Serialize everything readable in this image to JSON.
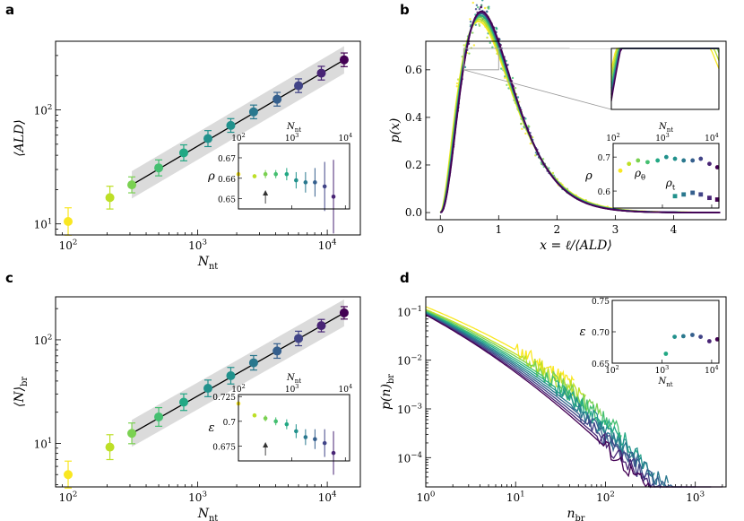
{
  "palette": [
    "#f9e721",
    "#bddf26",
    "#7ad151",
    "#44bf70",
    "#22a884",
    "#21918c",
    "#2a788e",
    "#355f8d",
    "#414487",
    "#482475",
    "#440154"
  ],
  "chart_data": [
    {
      "panel": "a",
      "type": "scatter",
      "xscale": "log",
      "yscale": "log",
      "xlim": [
        80,
        18000
      ],
      "ylim": [
        8,
        400
      ],
      "xlabel": "N",
      "xlabel_sub": "nt",
      "ylabel": "⟨ALD⟩",
      "xticks": [
        {
          "v": 100,
          "b": "10",
          "e": "2"
        },
        {
          "v": 1000,
          "b": "10",
          "e": "3"
        },
        {
          "v": 10000,
          "b": "10",
          "e": "4"
        }
      ],
      "yticks": [
        {
          "v": 10,
          "b": "10",
          "e": "1"
        },
        {
          "v": 100,
          "b": "10",
          "e": "2"
        }
      ],
      "x": [
        100,
        210,
        310,
        500,
        780,
        1200,
        1800,
        2700,
        4100,
        6000,
        9000,
        13500
      ],
      "y": [
        10.5,
        17,
        22,
        31,
        42,
        56,
        73,
        96,
        124,
        163,
        210,
        275
      ],
      "yerr": [
        0.12,
        0.1,
        0.07,
        0.07,
        0.07,
        0.07,
        0.06,
        0.06,
        0.06,
        0.06,
        0.06,
        0.06
      ],
      "fit": {
        "x": [
          310,
          13500
        ],
        "y": [
          22,
          275
        ],
        "band": 0.12
      },
      "inset": {
        "xlabel": "N",
        "xlabel_sub": "nt",
        "ylabel": "ρ",
        "xlim": [
          100,
          12000
        ],
        "ylim": [
          0.645,
          0.677
        ],
        "xticks": [
          {
            "v": 100,
            "b": "10",
            "e": "2"
          },
          {
            "v": 1000,
            "b": "10",
            "e": "3"
          },
          {
            "v": 10000,
            "b": "10",
            "e": "4"
          }
        ],
        "yticks": [
          0.65,
          0.66,
          0.67
        ],
        "x": [
          100,
          200,
          320,
          500,
          800,
          1200,
          1800,
          2700,
          4100,
          6000
        ],
        "y": [
          0.662,
          0.661,
          0.662,
          0.662,
          0.662,
          0.659,
          0.658,
          0.658,
          0.656,
          0.651
        ],
        "yerr": [
          0.001,
          0.001,
          0.002,
          0.002,
          0.003,
          0.004,
          0.005,
          0.007,
          0.012,
          0.018
        ],
        "arrow_x": 320
      }
    },
    {
      "panel": "b",
      "type": "line",
      "xlim": [
        -0.25,
        4.9
      ],
      "ylim": [
        -0.03,
        0.72
      ],
      "xlabel": "x = ℓ/⟨ALD⟩",
      "ylabel": "p(x)",
      "xticks": [
        0,
        1,
        2,
        3,
        4
      ],
      "yticks": [
        0.0,
        0.2,
        0.4,
        0.6
      ],
      "curve_model": "gamma",
      "shape_k": [
        2.9,
        3.0,
        3.1,
        3.2,
        3.2,
        3.3,
        3.3,
        3.3,
        3.35,
        3.35,
        3.4
      ],
      "inset_top": {
        "xlim": [
          0.4,
          1.0
        ],
        "ylim": [
          0.6,
          0.69
        ]
      },
      "inset": {
        "xlabel": "N",
        "xlabel_sub": "nt",
        "ylabel": "ρ",
        "xlim": [
          100,
          14000
        ],
        "ylim": [
          0.55,
          0.74
        ],
        "xticks": [
          {
            "v": 100,
            "b": "10",
            "e": "2"
          },
          {
            "v": 1000,
            "b": "10",
            "e": "3"
          },
          {
            "v": 10000,
            "b": "10",
            "e": "4"
          }
        ],
        "yticks": [
          0.6,
          0.7
        ],
        "rho_theta_label": "ρ",
        "rho_theta_sub": "θ",
        "rho_t_label": "ρ",
        "rho_t_sub": "t",
        "rho_theta": {
          "x": [
            140,
            210,
            320,
            500,
            800,
            1200,
            1800,
            2700,
            4100,
            6000,
            9000,
            13000
          ],
          "y": [
            0.66,
            0.68,
            0.69,
            0.685,
            0.69,
            0.7,
            0.695,
            0.69,
            0.69,
            0.695,
            0.68,
            0.67
          ]
        },
        "rho_t": {
          "x": [
            1800,
            2700,
            4100,
            6000,
            9000,
            13000
          ],
          "y": [
            0.585,
            0.59,
            0.595,
            0.59,
            0.58,
            0.575
          ]
        }
      }
    },
    {
      "panel": "c",
      "type": "scatter",
      "xscale": "log",
      "yscale": "log",
      "xlim": [
        80,
        18000
      ],
      "ylim": [
        3.8,
        260
      ],
      "xlabel": "N",
      "xlabel_sub": "nt",
      "ylabel": "⟨N⟩",
      "ylabel_sub": "br",
      "xticks": [
        {
          "v": 100,
          "b": "10",
          "e": "2"
        },
        {
          "v": 1000,
          "b": "10",
          "e": "3"
        },
        {
          "v": 10000,
          "b": "10",
          "e": "4"
        }
      ],
      "yticks": [
        {
          "v": 10,
          "b": "10",
          "e": "1"
        },
        {
          "v": 100,
          "b": "10",
          "e": "2"
        }
      ],
      "x": [
        100,
        210,
        310,
        500,
        780,
        1200,
        1800,
        2700,
        4100,
        6000,
        9000,
        13500
      ],
      "y": [
        5,
        9.2,
        12.5,
        18,
        25,
        34,
        45,
        60,
        78,
        103,
        137,
        182
      ],
      "yerr": [
        0.13,
        0.12,
        0.1,
        0.09,
        0.08,
        0.08,
        0.08,
        0.07,
        0.07,
        0.07,
        0.06,
        0.06
      ],
      "fit": {
        "x": [
          310,
          13500
        ],
        "y": [
          12.5,
          182
        ],
        "band": 0.13
      },
      "inset": {
        "xlabel": "N",
        "xlabel_sub": "nt",
        "ylabel": "ε",
        "xlim": [
          100,
          12000
        ],
        "ylim": [
          0.66,
          0.727
        ],
        "xticks": [
          {
            "v": 100,
            "b": "10",
            "e": "2"
          },
          {
            "v": 1000,
            "b": "10",
            "e": "3"
          },
          {
            "v": 10000,
            "b": "10",
            "e": "4"
          }
        ],
        "yticks": [
          0.675,
          0.7,
          0.725
        ],
        "x": [
          100,
          200,
          320,
          500,
          800,
          1200,
          1800,
          2700,
          4100,
          6000
        ],
        "y": [
          0.718,
          0.706,
          0.703,
          0.7,
          0.697,
          0.69,
          0.684,
          0.682,
          0.678,
          0.668
        ],
        "yerr": [
          0.002,
          0.002,
          0.003,
          0.004,
          0.005,
          0.007,
          0.008,
          0.01,
          0.014,
          0.022
        ],
        "arrow_x": 320
      }
    },
    {
      "panel": "d",
      "type": "line",
      "xscale": "log",
      "yscale": "log",
      "xlim": [
        1,
        2200
      ],
      "ylim": [
        2.5e-05,
        0.2
      ],
      "xlabel": "n",
      "xlabel_sub": "br",
      "ylabel": "p(n)",
      "ylabel_sub": "br",
      "xticks": [
        {
          "v": 1,
          "b": "10",
          "e": "0"
        },
        {
          "v": 10,
          "b": "10",
          "e": "1"
        },
        {
          "v": 100,
          "b": "10",
          "e": "2"
        },
        {
          "v": 1000,
          "b": "10",
          "e": "3"
        }
      ],
      "yticks": [
        {
          "v": 0.0001,
          "b": "10",
          "e": "−4"
        },
        {
          "v": 0.001,
          "b": "10",
          "e": "−3"
        },
        {
          "v": 0.01,
          "b": "10",
          "e": "−2"
        },
        {
          "v": 0.1,
          "b": "10",
          "e": "−1"
        }
      ],
      "series_end": [
        45,
        60,
        90,
        150,
        250,
        350,
        500,
        700,
        1000,
        1500,
        2000
      ],
      "series_start": [
        0.125,
        0.11,
        0.105,
        0.1,
        0.097,
        0.094,
        0.092,
        0.09,
        0.088,
        0.086,
        0.085
      ],
      "inset": {
        "xlabel": "N",
        "xlabel_sub": "nt",
        "ylabel": "ε",
        "xlim": [
          100,
          14000
        ],
        "ylim": [
          0.65,
          0.75
        ],
        "xticks": [
          {
            "v": 100,
            "b": "10",
            "e": "2"
          },
          {
            "v": 1000,
            "b": "10",
            "e": "3"
          },
          {
            "v": 10000,
            "b": "10",
            "e": "4"
          }
        ],
        "yticks": [
          0.65,
          0.7,
          0.75
        ],
        "x": [
          1200,
          1800,
          2700,
          4100,
          6000,
          9000,
          13000
        ],
        "y": [
          0.665,
          0.692,
          0.693,
          0.695,
          0.692,
          0.685,
          0.688
        ]
      }
    }
  ]
}
